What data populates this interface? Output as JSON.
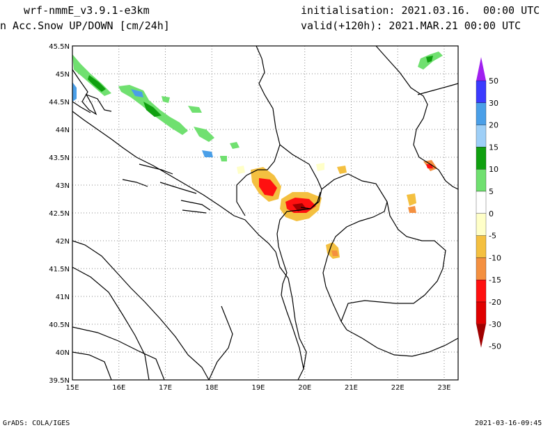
{
  "header": {
    "model": "wrf-nmmE_v3.9.1-e3km",
    "field": "n Acc.Snow UP/DOWN [cm/24h]",
    "init": "initialisation: 2021.03.16.  00:00 UTC",
    "valid": "valid(+120h): 2021.MAR.21 00:00 UTC"
  },
  "footer": {
    "left": "GrADS: COLA/IGES",
    "right": "2021-03-16-09:45"
  },
  "map": {
    "lon_range": [
      15,
      23.3
    ],
    "lat_range": [
      39.5,
      45.5
    ],
    "lon_ticks": [
      "15E",
      "16E",
      "17E",
      "18E",
      "19E",
      "20E",
      "21E",
      "22E",
      "23E"
    ],
    "lat_ticks": [
      "45.5N",
      "45N",
      "44.5N",
      "44N",
      "43.5N",
      "43N",
      "42.5N",
      "42N",
      "41.5N",
      "41N",
      "40.5N",
      "40N",
      "39.5N"
    ],
    "grid": "dotted"
  },
  "colorbar": {
    "labels": [
      "50",
      "30",
      "20",
      "15",
      "10",
      "5",
      "0",
      "-5",
      "-10",
      "-15",
      "-20",
      "-30",
      "-50"
    ],
    "colors": [
      "#a020f0",
      "#3b3bff",
      "#4a9fe8",
      "#9ecff7",
      "#10a010",
      "#70e070",
      "#ffffff",
      "#ffffc8",
      "#f4c040",
      "#f49040",
      "#ff1010",
      "#e00000",
      "#a00000"
    ]
  }
}
